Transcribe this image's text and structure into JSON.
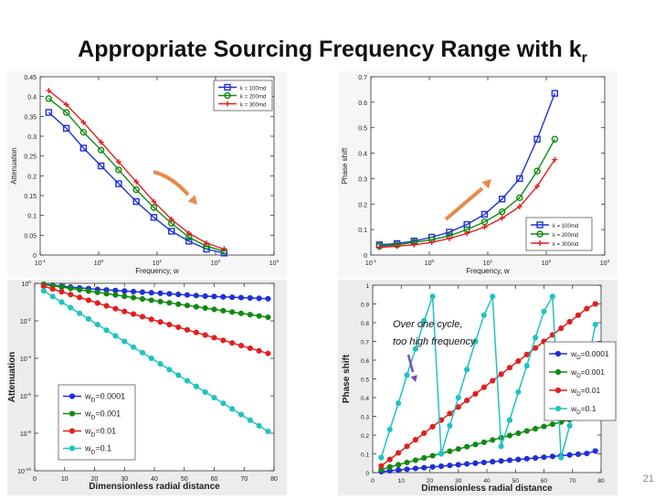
{
  "slide": {
    "title": "Appropriate Sourcing Frequency Range with k",
    "title_subscript": "r",
    "page_number": "21"
  },
  "chart_data": [
    {
      "type": "line",
      "id": "attenuation-vs-frequency",
      "xscale": "log",
      "xlim": [
        0.1,
        1000
      ],
      "ylim": [
        0,
        0.45
      ],
      "xlabel": "Frequency, w",
      "ylabel": "Attenuation",
      "xticks": [
        "10^-1",
        "10^0",
        "10^1",
        "10^2",
        "10^3"
      ],
      "yticks": [
        "0",
        "0.05",
        "0.1",
        "0.15",
        "0.2",
        "0.25",
        "0.3",
        "0.35",
        "0.4",
        "0.45"
      ],
      "legend": "top-right",
      "x": [
        0.14,
        0.28,
        0.55,
        1.1,
        2.2,
        4.4,
        8.8,
        17.6,
        35,
        70,
        140
      ],
      "series": [
        {
          "name": "k = 100md",
          "color": "#1f2fd8",
          "marker": "square",
          "values": [
            0.36,
            0.32,
            0.27,
            0.225,
            0.18,
            0.135,
            0.095,
            0.06,
            0.035,
            0.015,
            0.005
          ]
        },
        {
          "name": "k = 200md",
          "color": "#108a10",
          "marker": "circle",
          "values": [
            0.395,
            0.36,
            0.31,
            0.265,
            0.215,
            0.165,
            0.12,
            0.08,
            0.045,
            0.022,
            0.01
          ]
        },
        {
          "name": "k = 300md",
          "color": "#e02020",
          "marker": "plus",
          "values": [
            0.415,
            0.38,
            0.335,
            0.285,
            0.235,
            0.185,
            0.135,
            0.09,
            0.055,
            0.03,
            0.015
          ]
        }
      ],
      "annotation": {
        "type": "arrow",
        "color": "#e8894a",
        "direction": "down-right"
      }
    },
    {
      "type": "line",
      "id": "phase-shift-vs-frequency",
      "xscale": "log",
      "xlim": [
        0.1,
        1000
      ],
      "ylim": [
        0,
        0.7
      ],
      "xlabel": "Frequency, w",
      "ylabel": "Phase shift",
      "xticks": [
        "10^-1",
        "10^0",
        "10^1",
        "10^2",
        "10^3"
      ],
      "yticks": [
        "0",
        "0.1",
        "0.2",
        "0.3",
        "0.4",
        "0.5",
        "0.6",
        "0.7"
      ],
      "legend": "bottom-right",
      "x": [
        0.14,
        0.28,
        0.55,
        1.1,
        2.2,
        4.4,
        8.8,
        17.6,
        35,
        70,
        140
      ],
      "series": [
        {
          "name": "k = 100md",
          "color": "#1f2fd8",
          "marker": "square",
          "values": [
            0.04,
            0.045,
            0.055,
            0.07,
            0.09,
            0.12,
            0.16,
            0.22,
            0.3,
            0.455,
            0.635
          ]
        },
        {
          "name": "k = 200md",
          "color": "#108a10",
          "marker": "circle",
          "values": [
            0.035,
            0.04,
            0.05,
            0.06,
            0.075,
            0.1,
            0.13,
            0.17,
            0.225,
            0.33,
            0.455
          ]
        },
        {
          "name": "k = 300md",
          "color": "#e02020",
          "marker": "plus",
          "values": [
            0.03,
            0.035,
            0.04,
            0.05,
            0.065,
            0.085,
            0.11,
            0.145,
            0.19,
            0.27,
            0.375
          ]
        }
      ],
      "annotation": {
        "type": "arrow",
        "color": "#e8894a",
        "direction": "up-right"
      }
    },
    {
      "type": "line",
      "id": "attenuation-vs-radial-distance",
      "yscale": "log",
      "xlim": [
        0,
        80
      ],
      "ylim": [
        1e-10,
        1
      ],
      "xlabel": "Dimensionless radial distance",
      "ylabel": "Attenuation",
      "xticks": [
        "0",
        "10",
        "20",
        "30",
        "40",
        "50",
        "60",
        "70",
        "80"
      ],
      "yticks": [
        "10^0",
        "10^-2",
        "10^-4",
        "10^-6",
        "10^-8",
        "10^-10"
      ],
      "legend": "bottom-left",
      "x": [
        3,
        6,
        9,
        12,
        15,
        18,
        21,
        24,
        27,
        30,
        33,
        36,
        39,
        42,
        45,
        48,
        51,
        54,
        57,
        60,
        63,
        66,
        69,
        72,
        75,
        78
      ],
      "series": [
        {
          "name": "w_D=0.0001",
          "color": "#1f2fd8",
          "marker": "circle",
          "values_log10": [
            -0.05,
            -0.1,
            -0.15,
            -0.2,
            -0.24,
            -0.28,
            -0.32,
            -0.35,
            -0.38,
            -0.41,
            -0.44,
            -0.47,
            -0.5,
            -0.53,
            -0.56,
            -0.59,
            -0.62,
            -0.65,
            -0.68,
            -0.7,
            -0.72,
            -0.74,
            -0.76,
            -0.78,
            -0.8,
            -0.82
          ]
        },
        {
          "name": "w_D=0.001",
          "color": "#108a10",
          "marker": "circle",
          "values_log10": [
            -0.06,
            -0.13,
            -0.2,
            -0.27,
            -0.34,
            -0.41,
            -0.48,
            -0.55,
            -0.62,
            -0.69,
            -0.76,
            -0.83,
            -0.9,
            -0.97,
            -1.04,
            -1.11,
            -1.18,
            -1.25,
            -1.32,
            -1.39,
            -1.46,
            -1.53,
            -1.6,
            -1.67,
            -1.74,
            -1.81
          ]
        },
        {
          "name": "w_D=0.01",
          "color": "#e02020",
          "marker": "circle",
          "values_log10": [
            -0.15,
            -0.3,
            -0.45,
            -0.6,
            -0.75,
            -0.9,
            -1.05,
            -1.2,
            -1.35,
            -1.5,
            -1.64,
            -1.78,
            -1.92,
            -2.06,
            -2.2,
            -2.34,
            -2.48,
            -2.62,
            -2.76,
            -2.9,
            -3.04,
            -3.18,
            -3.32,
            -3.46,
            -3.6,
            -3.74
          ]
        },
        {
          "name": "w_D=0.1",
          "color": "#22c2c2",
          "marker": "circle",
          "values_log10": [
            -0.4,
            -0.7,
            -1.0,
            -1.3,
            -1.6,
            -1.9,
            -2.2,
            -2.5,
            -2.8,
            -3.1,
            -3.4,
            -3.7,
            -4.0,
            -4.3,
            -4.6,
            -4.9,
            -5.2,
            -5.5,
            -5.8,
            -6.1,
            -6.4,
            -6.7,
            -7.0,
            -7.3,
            -7.6,
            -7.9
          ]
        }
      ]
    },
    {
      "type": "line",
      "id": "phase-shift-vs-radial-distance",
      "xlim": [
        0,
        80
      ],
      "ylim": [
        0,
        1
      ],
      "xlabel": "Dimensionless radial distance",
      "ylabel": "Phase shift",
      "xticks": [
        "0",
        "10",
        "20",
        "30",
        "40",
        "50",
        "60",
        "70",
        "80"
      ],
      "yticks": [
        "0",
        "0.1",
        "0.2",
        "0.3",
        "0.4",
        "0.5",
        "0.6",
        "0.7",
        "0.8",
        "0.9",
        "1"
      ],
      "legend": "right",
      "annotation_text": [
        "Over one cycle,",
        "too high frequency"
      ],
      "annotation_arrow_color": "#7a4fb0",
      "x": [
        3,
        6,
        9,
        12,
        15,
        18,
        21,
        24,
        27,
        30,
        33,
        36,
        39,
        42,
        45,
        48,
        51,
        54,
        57,
        60,
        63,
        66,
        69,
        72,
        75,
        78
      ],
      "series": [
        {
          "name": "w_D=0.0001",
          "color": "#1f2fd8",
          "marker": "circle",
          "values": [
            0.005,
            0.01,
            0.014,
            0.018,
            0.022,
            0.026,
            0.03,
            0.034,
            0.038,
            0.042,
            0.046,
            0.05,
            0.054,
            0.058,
            0.062,
            0.066,
            0.07,
            0.074,
            0.078,
            0.082,
            0.086,
            0.09,
            0.094,
            0.098,
            0.102,
            0.115
          ]
        },
        {
          "name": "w_D=0.001",
          "color": "#108a10",
          "marker": "circle",
          "values": [
            0.015,
            0.03,
            0.042,
            0.054,
            0.066,
            0.078,
            0.09,
            0.102,
            0.114,
            0.126,
            0.138,
            0.15,
            0.162,
            0.174,
            0.186,
            0.198,
            0.21,
            0.222,
            0.234,
            0.246,
            0.258,
            0.27,
            0.282,
            0.292,
            0.298,
            0.3
          ]
        },
        {
          "name": "w_D=0.01",
          "color": "#e02020",
          "marker": "circle",
          "values": [
            0.035,
            0.07,
            0.105,
            0.14,
            0.175,
            0.21,
            0.245,
            0.28,
            0.315,
            0.35,
            0.385,
            0.42,
            0.455,
            0.49,
            0.525,
            0.56,
            0.595,
            0.63,
            0.665,
            0.7,
            0.735,
            0.77,
            0.805,
            0.84,
            0.875,
            0.9
          ]
        },
        {
          "name": "w_D=0.1",
          "color": "#22c2c2",
          "marker": "circle",
          "values": [
            0.08,
            0.23,
            0.37,
            0.52,
            0.66,
            0.81,
            0.94,
            0.1,
            0.25,
            0.4,
            0.55,
            0.7,
            0.84,
            0.94,
            0.14,
            0.28,
            0.43,
            0.57,
            0.72,
            0.86,
            0.94,
            0.08,
            0.25,
            0.4,
            0.55,
            0.79
          ]
        }
      ]
    }
  ]
}
